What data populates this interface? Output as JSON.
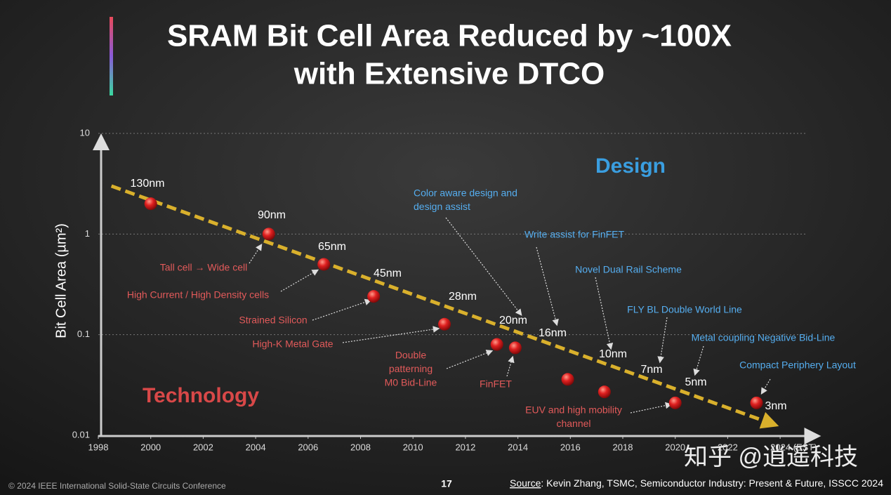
{
  "chart_data": {
    "type": "scatter",
    "title": "SRAM Bit Cell Area Reduced by ~100X",
    "subtitle": "with Extensive DTCO",
    "ylabel": "Bit Cell Area (µm²)",
    "log_scale": true,
    "grid": true,
    "xlim": [
      1998,
      2025.4
    ],
    "xticks": [
      1998,
      2000,
      2002,
      2004,
      2006,
      2008,
      2010,
      2012,
      2014,
      2016,
      2018,
      2020,
      2022,
      {
        "value": 2024,
        "label": "2024 (EST)"
      }
    ],
    "ylim": [
      0.01,
      10
    ],
    "yticks": [
      10,
      1,
      0.1,
      0.01
    ],
    "series": [
      {
        "color": "#d41c1c",
        "x": [
          2000,
          2004.5,
          2006.6,
          2008.5,
          2011.2,
          2013.2,
          2013.9,
          2015.9,
          2017.3,
          2020,
          2023.1
        ],
        "values": [
          2.0,
          1.0,
          0.5,
          0.24,
          0.127,
          0.08,
          0.074,
          0.036,
          0.027,
          0.021,
          0.021
        ]
      }
    ],
    "trend": {
      "color": "#d9b02c",
      "x": [
        1998.5,
        2023.7
      ],
      "values": [
        3.0,
        0.013
      ]
    },
    "node_labels": [
      "130nm",
      "90nm",
      "65nm",
      "45nm",
      "28nm",
      "20nm",
      "16nm",
      "10nm",
      "7nm",
      "5nm",
      "3nm"
    ],
    "region_labels": {
      "design": "Design",
      "technology": "Technology"
    },
    "technology_notes": [
      "Tall cell → Wide cell",
      "High Current / High Density cells",
      "Strained Silicon",
      "High-K Metal Gate",
      [
        "Double",
        "patterning",
        "M0 Bid-Line"
      ],
      "FinFET",
      [
        "EUV and high mobility",
        "channel"
      ]
    ],
    "design_notes": [
      [
        "Color aware design and",
        "design assist"
      ],
      "Write assist for FinFET",
      "Novel Dual Rail Scheme",
      "FLY BL Double World Line",
      "Metal coupling Negative Bid-Line",
      "Compact Periphery Layout"
    ]
  },
  "footer": {
    "copyright": "© 2024 IEEE International Solid-State Circuits Conference",
    "page": "17",
    "source_label": "Source",
    "source_text": ": Kevin Zhang, TSMC, Semiconductor Industry: Present & Future, ISSCC 2024"
  },
  "watermark": "知乎 @逍遥科技"
}
